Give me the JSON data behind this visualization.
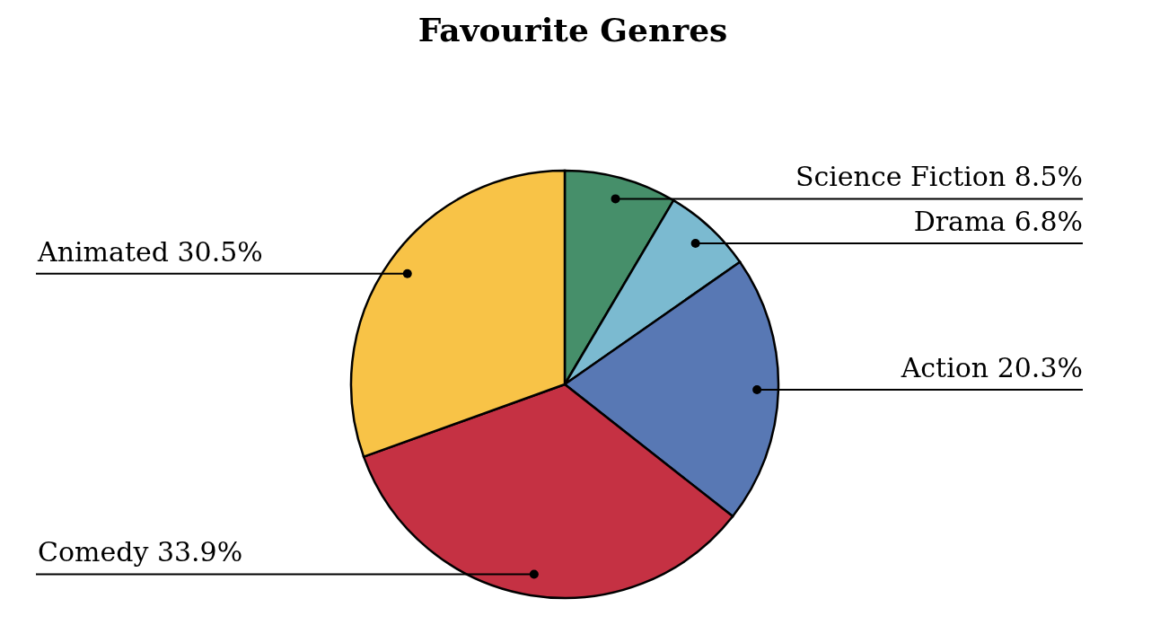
{
  "chart_data": {
    "type": "pie",
    "title": "Favourite Genres",
    "categories": [
      "Science Fiction",
      "Drama",
      "Action",
      "Comedy",
      "Animated"
    ],
    "values": [
      8.5,
      6.8,
      20.3,
      33.9,
      30.5
    ],
    "value_labels": [
      "8.5%",
      "6.8%",
      "20.3%",
      "33.9%",
      "30.5%"
    ],
    "colors": [
      "#468f6a",
      "#7bbad0",
      "#5878b4",
      "#c53143",
      "#f8c347"
    ]
  }
}
